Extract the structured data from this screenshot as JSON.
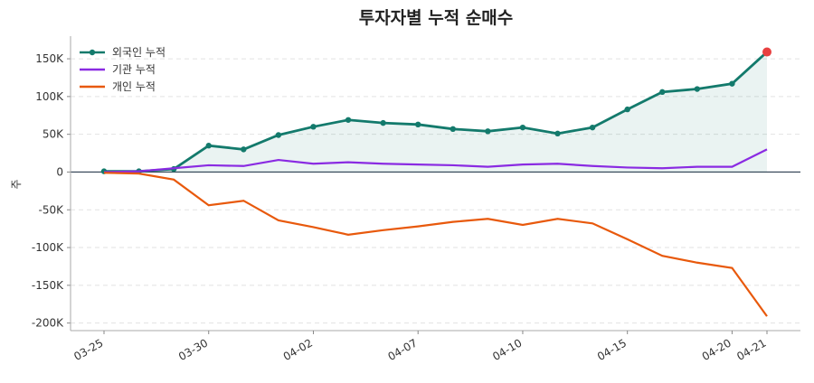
{
  "chart_data": {
    "type": "line",
    "title": "투자자별 누적 순매수",
    "y_label": "주",
    "categories": [
      "03-25",
      null,
      null,
      "03-30",
      null,
      null,
      "04-02",
      null,
      null,
      "04-07",
      null,
      null,
      "04-10",
      null,
      null,
      "04-15",
      null,
      null,
      "04-20",
      "04-21"
    ],
    "series": [
      {
        "name": "외국인 누적",
        "color": "#137a6c",
        "values": [
          1000,
          1000,
          4000,
          35000,
          30000,
          49000,
          60000,
          69000,
          65000,
          63000,
          57000,
          54000,
          59000,
          51000,
          59000,
          83000,
          106000,
          110000,
          117000,
          159000
        ]
      },
      {
        "name": "기관 누적",
        "color": "#8a2be2",
        "values": [
          0,
          1000,
          5000,
          9000,
          8000,
          16000,
          11000,
          13000,
          11000,
          10000,
          9000,
          7000,
          10000,
          11000,
          8000,
          6000,
          5000,
          7000,
          7000,
          30000
        ]
      },
      {
        "name": "개인 누적",
        "color": "#e8590c",
        "values": [
          -1000,
          -2000,
          -10000,
          -44000,
          -38000,
          -64000,
          -73000,
          -83000,
          -77000,
          -72000,
          -66000,
          -62000,
          -70000,
          -62000,
          -68000,
          -89000,
          -111000,
          -120000,
          -127000,
          -191000
        ]
      }
    ],
    "ylim": [
      -210000,
      180000
    ],
    "yticks": [
      {
        "value": -200000,
        "label": "-200K"
      },
      {
        "value": -150000,
        "label": "-150K"
      },
      {
        "value": -100000,
        "label": "-100K"
      },
      {
        "value": -50000,
        "label": "-50K"
      },
      0,
      {
        "value": 50000,
        "label": "50K"
      },
      {
        "value": 100000,
        "label": "100K"
      },
      {
        "value": 150000,
        "label": "150K"
      }
    ],
    "grid": true,
    "legend": "upper-left",
    "highlight_color": "#e84040",
    "fill_color": "#137a6c"
  }
}
